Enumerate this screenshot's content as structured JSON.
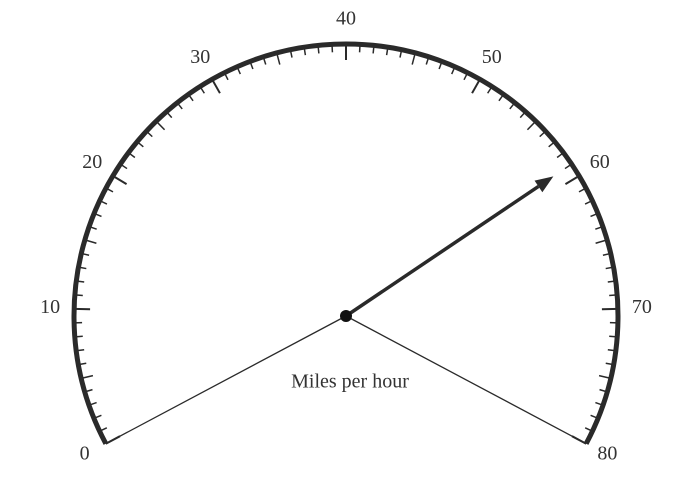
{
  "chart_data": {
    "type": "gauge",
    "title": "Miles per hour",
    "value": 59,
    "min": 0,
    "max": 80,
    "ticks": [
      0,
      10,
      20,
      30,
      40,
      50,
      60,
      70,
      80
    ],
    "color": "#2a2a2a"
  }
}
